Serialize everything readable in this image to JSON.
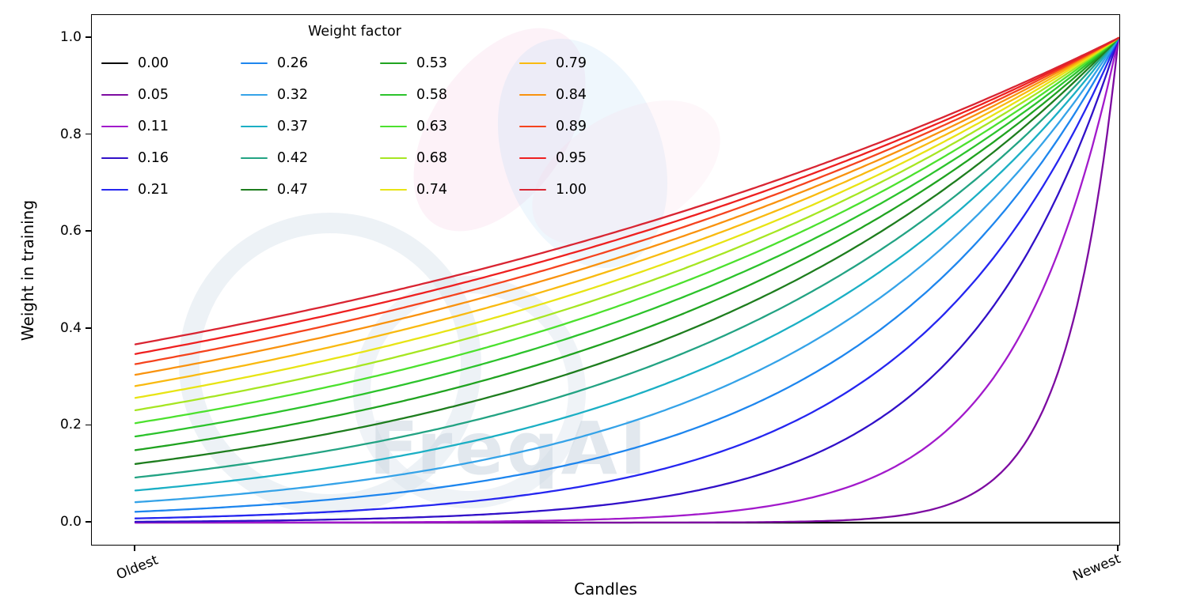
{
  "watermark": {
    "text": "FreqAI"
  },
  "chart_data": {
    "type": "line",
    "title": "",
    "xlabel": "Candles",
    "ylabel": "Weight in training",
    "xtick_labels": [
      "Oldest",
      "Newest"
    ],
    "ytick_labels": [
      "0.0",
      "0.2",
      "0.4",
      "0.6",
      "0.8",
      "1.0"
    ],
    "ylim": [
      0,
      1
    ],
    "x_domain": [
      0,
      1
    ],
    "grid": false,
    "legend": {
      "title": "Weight factor",
      "position": "upper left",
      "columns": 4,
      "rows": 5
    },
    "formula": "weight(x) = exp(-(1 - x) / weight_factor) with x in [0,1] from Oldest to Newest; weight_factor = 0 gives weight 0",
    "x_samples": [
      0,
      0.1,
      0.2,
      0.3,
      0.4,
      0.5,
      0.6,
      0.7,
      0.8,
      0.9,
      1.0
    ],
    "series": [
      {
        "label": "0.00",
        "weight_factor": 0.0,
        "color": "#000000",
        "values": [
          0,
          0,
          0,
          0,
          0,
          0,
          0,
          0,
          0,
          0,
          0
        ]
      },
      {
        "label": "0.05",
        "weight_factor": 0.0526,
        "color": "#7d0ba1",
        "values": [
          0,
          0,
          0,
          0,
          0,
          0,
          0,
          0.003,
          0.022,
          0.149,
          1.0
        ]
      },
      {
        "label": "0.11",
        "weight_factor": 0.1053,
        "color": "#a21acb",
        "values": [
          0,
          0,
          0.001,
          0.001,
          0.003,
          0.009,
          0.022,
          0.058,
          0.15,
          0.387,
          1.0
        ]
      },
      {
        "label": "0.16",
        "weight_factor": 0.1579,
        "color": "#3110c8",
        "values": [
          0.002,
          0.003,
          0.006,
          0.012,
          0.022,
          0.042,
          0.079,
          0.15,
          0.282,
          0.531,
          1.0
        ]
      },
      {
        "label": "0.21",
        "weight_factor": 0.2105,
        "color": "#2526f0",
        "values": [
          0.009,
          0.014,
          0.022,
          0.036,
          0.058,
          0.093,
          0.15,
          0.24,
          0.387,
          0.622,
          1.0
        ]
      },
      {
        "label": "0.26",
        "weight_factor": 0.2632,
        "color": "#1e86ee",
        "values": [
          0.022,
          0.033,
          0.048,
          0.07,
          0.102,
          0.15,
          0.219,
          0.32,
          0.468,
          0.684,
          1.0
        ]
      },
      {
        "label": "0.32",
        "weight_factor": 0.3158,
        "color": "#35a3e8",
        "values": [
          0.042,
          0.058,
          0.079,
          0.109,
          0.15,
          0.205,
          0.282,
          0.387,
          0.531,
          0.729,
          1.0
        ]
      },
      {
        "label": "0.37",
        "weight_factor": 0.3684,
        "color": "#1bafc4",
        "values": [
          0.066,
          0.087,
          0.114,
          0.15,
          0.196,
          0.257,
          0.338,
          0.443,
          0.581,
          0.762,
          1.0
        ]
      },
      {
        "label": "0.42",
        "weight_factor": 0.4211,
        "color": "#23a383",
        "values": [
          0.093,
          0.118,
          0.15,
          0.19,
          0.24,
          0.305,
          0.387,
          0.49,
          0.622,
          0.789,
          1.0
        ]
      },
      {
        "label": "0.47",
        "weight_factor": 0.4737,
        "color": "#1e7d1e",
        "values": [
          0.121,
          0.15,
          0.185,
          0.228,
          0.282,
          0.348,
          0.43,
          0.531,
          0.656,
          0.81,
          1.0
        ]
      },
      {
        "label": "0.53",
        "weight_factor": 0.5263,
        "color": "#20a320",
        "values": [
          0.15,
          0.181,
          0.219,
          0.264,
          0.32,
          0.387,
          0.468,
          0.566,
          0.684,
          0.827,
          1.0
        ]
      },
      {
        "label": "0.58",
        "weight_factor": 0.5789,
        "color": "#2cc32c",
        "values": [
          0.178,
          0.211,
          0.251,
          0.298,
          0.355,
          0.422,
          0.501,
          0.596,
          0.708,
          0.841,
          1.0
        ]
      },
      {
        "label": "0.63",
        "weight_factor": 0.6316,
        "color": "#4ce12e",
        "values": [
          0.205,
          0.24,
          0.282,
          0.33,
          0.387,
          0.453,
          0.531,
          0.622,
          0.729,
          0.854,
          1.0
        ]
      },
      {
        "label": "0.68",
        "weight_factor": 0.6842,
        "color": "#a6e622",
        "values": [
          0.232,
          0.268,
          0.311,
          0.359,
          0.416,
          0.482,
          0.557,
          0.645,
          0.746,
          0.864,
          1.0
        ]
      },
      {
        "label": "0.74",
        "weight_factor": 0.7368,
        "color": "#e8e414",
        "values": [
          0.257,
          0.295,
          0.338,
          0.387,
          0.443,
          0.507,
          0.581,
          0.666,
          0.762,
          0.873,
          1.0
        ]
      },
      {
        "label": "0.79",
        "weight_factor": 0.7895,
        "color": "#f9ba10",
        "values": [
          0.282,
          0.32,
          0.363,
          0.412,
          0.468,
          0.531,
          0.602,
          0.684,
          0.776,
          0.881,
          1.0
        ]
      },
      {
        "label": "0.84",
        "weight_factor": 0.8421,
        "color": "#f9920e",
        "values": [
          0.305,
          0.343,
          0.387,
          0.436,
          0.49,
          0.552,
          0.622,
          0.7,
          0.789,
          0.888,
          1.0
        ]
      },
      {
        "label": "0.89",
        "weight_factor": 0.8947,
        "color": "#f5431e",
        "values": [
          0.327,
          0.366,
          0.409,
          0.457,
          0.511,
          0.572,
          0.64,
          0.715,
          0.8,
          0.894,
          1.0
        ]
      },
      {
        "label": "0.95",
        "weight_factor": 0.9474,
        "color": "#ee2020",
        "values": [
          0.348,
          0.387,
          0.43,
          0.478,
          0.531,
          0.59,
          0.656,
          0.729,
          0.81,
          0.9,
          1.0
        ]
      },
      {
        "label": "1.00",
        "weight_factor": 1.0,
        "color": "#d92532",
        "values": [
          0.368,
          0.407,
          0.449,
          0.497,
          0.549,
          0.607,
          0.67,
          0.741,
          0.819,
          0.905,
          1.0
        ]
      }
    ]
  }
}
